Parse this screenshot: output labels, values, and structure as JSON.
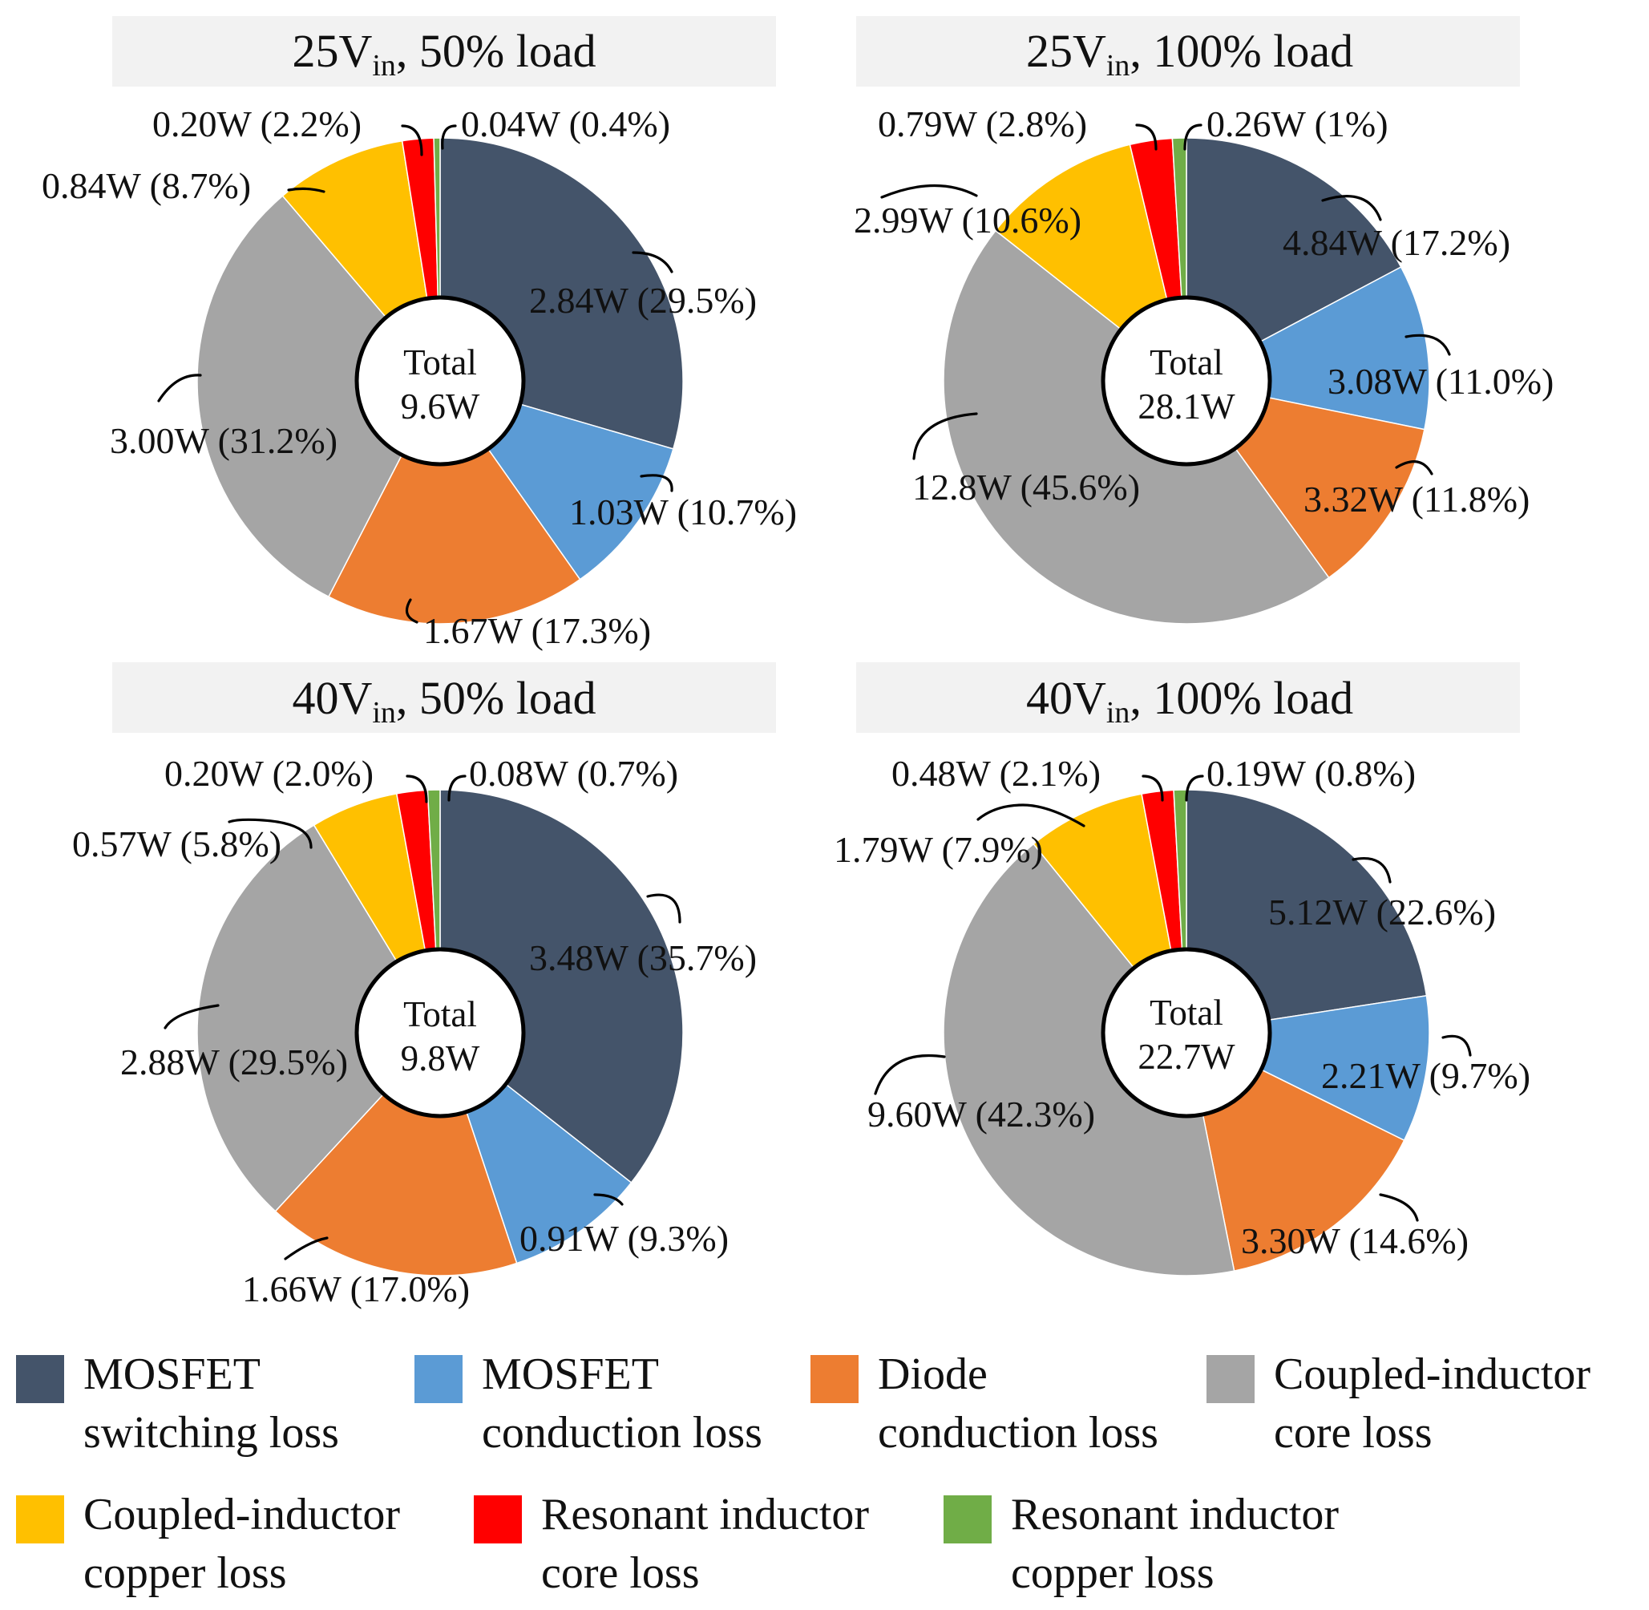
{
  "chart_data": [
    {
      "type": "pie",
      "title": "25Vin, 50% load",
      "title_parts": {
        "main": "25V",
        "sub": "in",
        "rest": ", 50% load"
      },
      "center_label": [
        "Total",
        "9.6W"
      ],
      "slices": [
        {
          "category": "MOSFET switching loss",
          "value": 2.84,
          "label": "2.84W (29.5%)"
        },
        {
          "category": "MOSFET conduction loss",
          "value": 1.03,
          "label": "1.03W (10.7%)"
        },
        {
          "category": "Diode conduction loss",
          "value": 1.67,
          "label": "1.67W (17.3%)"
        },
        {
          "category": "Coupled-inductor core loss",
          "value": 3.0,
          "label": "3.00W (31.2%)"
        },
        {
          "category": "Coupled-inductor copper loss",
          "value": 0.84,
          "label": "0.84W (8.7%)"
        },
        {
          "category": "Resonant inductor core loss",
          "value": 0.2,
          "label": "0.20W (2.2%)"
        },
        {
          "category": "Resonant inductor copper loss",
          "value": 0.04,
          "label": "0.04W (0.4%)"
        }
      ]
    },
    {
      "type": "pie",
      "title": "25Vin, 100% load",
      "title_parts": {
        "main": "25V",
        "sub": "in",
        "rest": ", 100% load"
      },
      "center_label": [
        "Total",
        "28.1W"
      ],
      "slices": [
        {
          "category": "MOSFET switching loss",
          "value": 4.84,
          "label": "4.84W (17.2%)"
        },
        {
          "category": "MOSFET conduction loss",
          "value": 3.08,
          "label": "3.08W (11.0%)"
        },
        {
          "category": "Diode conduction loss",
          "value": 3.32,
          "label": "3.32W (11.8%)"
        },
        {
          "category": "Coupled-inductor core loss",
          "value": 12.8,
          "label": "12.8W (45.6%)"
        },
        {
          "category": "Coupled-inductor copper loss",
          "value": 2.99,
          "label": "2.99W (10.6%)"
        },
        {
          "category": "Resonant inductor core loss",
          "value": 0.79,
          "label": "0.79W (2.8%)"
        },
        {
          "category": "Resonant inductor copper loss",
          "value": 0.26,
          "label": "0.26W (1%)"
        }
      ]
    },
    {
      "type": "pie",
      "title": "40Vin, 50% load",
      "title_parts": {
        "main": "40V",
        "sub": "in",
        "rest": ", 50% load"
      },
      "center_label": [
        "Total",
        "9.8W"
      ],
      "slices": [
        {
          "category": "MOSFET switching loss",
          "value": 3.48,
          "label": "3.48W (35.7%)"
        },
        {
          "category": "MOSFET conduction loss",
          "value": 0.91,
          "label": "0.91W (9.3%)"
        },
        {
          "category": "Diode conduction loss",
          "value": 1.66,
          "label": "1.66W (17.0%)"
        },
        {
          "category": "Coupled-inductor core loss",
          "value": 2.88,
          "label": "2.88W (29.5%)"
        },
        {
          "category": "Coupled-inductor copper loss",
          "value": 0.57,
          "label": "0.57W (5.8%)"
        },
        {
          "category": "Resonant inductor core loss",
          "value": 0.2,
          "label": "0.20W (2.0%)"
        },
        {
          "category": "Resonant inductor copper loss",
          "value": 0.08,
          "label": "0.08W (0.7%)"
        }
      ]
    },
    {
      "type": "pie",
      "title": "40Vin, 100% load",
      "title_parts": {
        "main": "40V",
        "sub": "in",
        "rest": ", 100% load"
      },
      "center_label": [
        "Total",
        "22.7W"
      ],
      "slices": [
        {
          "category": "MOSFET switching loss",
          "value": 5.12,
          "label": "5.12W (22.6%)"
        },
        {
          "category": "MOSFET conduction loss",
          "value": 2.21,
          "label": "2.21W (9.7%)"
        },
        {
          "category": "Diode conduction loss",
          "value": 3.3,
          "label": "3.30W (14.6%)"
        },
        {
          "category": "Coupled-inductor core loss",
          "value": 9.6,
          "label": "9.60W (42.3%)"
        },
        {
          "category": "Coupled-inductor copper loss",
          "value": 1.79,
          "label": "1.79W (7.9%)"
        },
        {
          "category": "Resonant inductor core loss",
          "value": 0.48,
          "label": "0.48W (2.1%)"
        },
        {
          "category": "Resonant inductor copper loss",
          "value": 0.19,
          "label": "0.19W (0.8%)"
        }
      ]
    }
  ],
  "legend": [
    {
      "category": "MOSFET switching loss",
      "lines": [
        "MOSFET",
        "switching loss"
      ],
      "color": "#44546A"
    },
    {
      "category": "MOSFET conduction loss",
      "lines": [
        "MOSFET",
        "conduction loss"
      ],
      "color": "#5B9BD5"
    },
    {
      "category": "Diode conduction loss",
      "lines": [
        "Diode",
        "conduction loss"
      ],
      "color": "#ED7D31"
    },
    {
      "category": "Coupled-inductor core loss",
      "lines": [
        "Coupled-inductor",
        "core loss"
      ],
      "color": "#A5A5A5"
    },
    {
      "category": "Coupled-inductor copper loss",
      "lines": [
        "Coupled-inductor",
        "copper loss"
      ],
      "color": "#FFC000"
    },
    {
      "category": "Resonant inductor core loss",
      "lines": [
        "Resonant inductor",
        "core loss"
      ],
      "color": "#FF0000"
    },
    {
      "category": "Resonant inductor copper loss",
      "lines": [
        "Resonant inductor",
        "copper loss"
      ],
      "color": "#70AD47"
    }
  ]
}
